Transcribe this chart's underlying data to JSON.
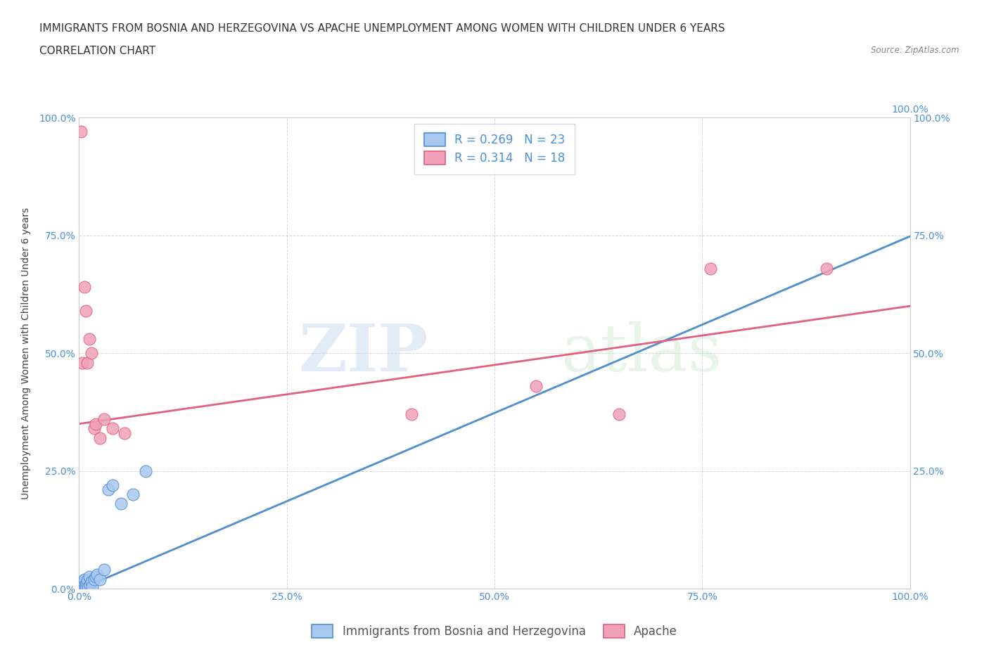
{
  "title_line1": "IMMIGRANTS FROM BOSNIA AND HERZEGOVINA VS APACHE UNEMPLOYMENT AMONG WOMEN WITH CHILDREN UNDER 6 YEARS",
  "title_line2": "CORRELATION CHART",
  "source": "Source: ZipAtlas.com",
  "ylabel": "Unemployment Among Women with Children Under 6 years",
  "xlim": [
    0,
    1.0
  ],
  "ylim": [
    0,
    1.0
  ],
  "xtick_labels": [
    "0.0%",
    "25.0%",
    "50.0%",
    "75.0%",
    "100.0%"
  ],
  "xtick_vals": [
    0,
    0.25,
    0.5,
    0.75,
    1.0
  ],
  "ytick_labels": [
    "0.0%",
    "25.0%",
    "50.0%",
    "75.0%",
    "100.0%"
  ],
  "ytick_vals": [
    0,
    0.25,
    0.5,
    0.75,
    1.0
  ],
  "blue_scatter_x": [
    0.003,
    0.004,
    0.005,
    0.006,
    0.007,
    0.008,
    0.009,
    0.01,
    0.011,
    0.012,
    0.013,
    0.015,
    0.016,
    0.018,
    0.02,
    0.022,
    0.025,
    0.03,
    0.035,
    0.04,
    0.05,
    0.065,
    0.08
  ],
  "blue_scatter_y": [
    0.005,
    0.01,
    0.015,
    0.02,
    0.008,
    0.005,
    0.012,
    0.018,
    0.003,
    0.025,
    0.008,
    0.015,
    0.005,
    0.02,
    0.025,
    0.03,
    0.02,
    0.04,
    0.21,
    0.22,
    0.18,
    0.2,
    0.25
  ],
  "pink_scatter_x": [
    0.002,
    0.004,
    0.006,
    0.008,
    0.01,
    0.012,
    0.015,
    0.018,
    0.02,
    0.025,
    0.03,
    0.04,
    0.055,
    0.4,
    0.55,
    0.65,
    0.76,
    0.9
  ],
  "pink_scatter_y": [
    0.97,
    0.48,
    0.64,
    0.59,
    0.48,
    0.53,
    0.5,
    0.34,
    0.35,
    0.32,
    0.36,
    0.34,
    0.33,
    0.37,
    0.43,
    0.37,
    0.68,
    0.68
  ],
  "blue_color": "#a8c8f0",
  "pink_color": "#f0a0b8",
  "blue_edge_color": "#5090d0",
  "pink_edge_color": "#e06080",
  "blue_line_color": "#5090d0",
  "pink_line_color": "#e06080",
  "blue_trendline_intercept": -0.002,
  "blue_trendline_slope": 0.75,
  "pink_trendline_intercept": 0.35,
  "pink_trendline_slope": 0.25,
  "R_blue": "0.269",
  "N_blue": "23",
  "R_pink": "0.314",
  "N_pink": "18",
  "legend_label_blue": "Immigrants from Bosnia and Herzegovina",
  "legend_label_pink": "Apache",
  "watermark_zip": "ZIP",
  "watermark_atlas": "atlas",
  "title_fontsize": 11,
  "axis_label_fontsize": 10,
  "tick_fontsize": 10,
  "legend_fontsize": 12
}
